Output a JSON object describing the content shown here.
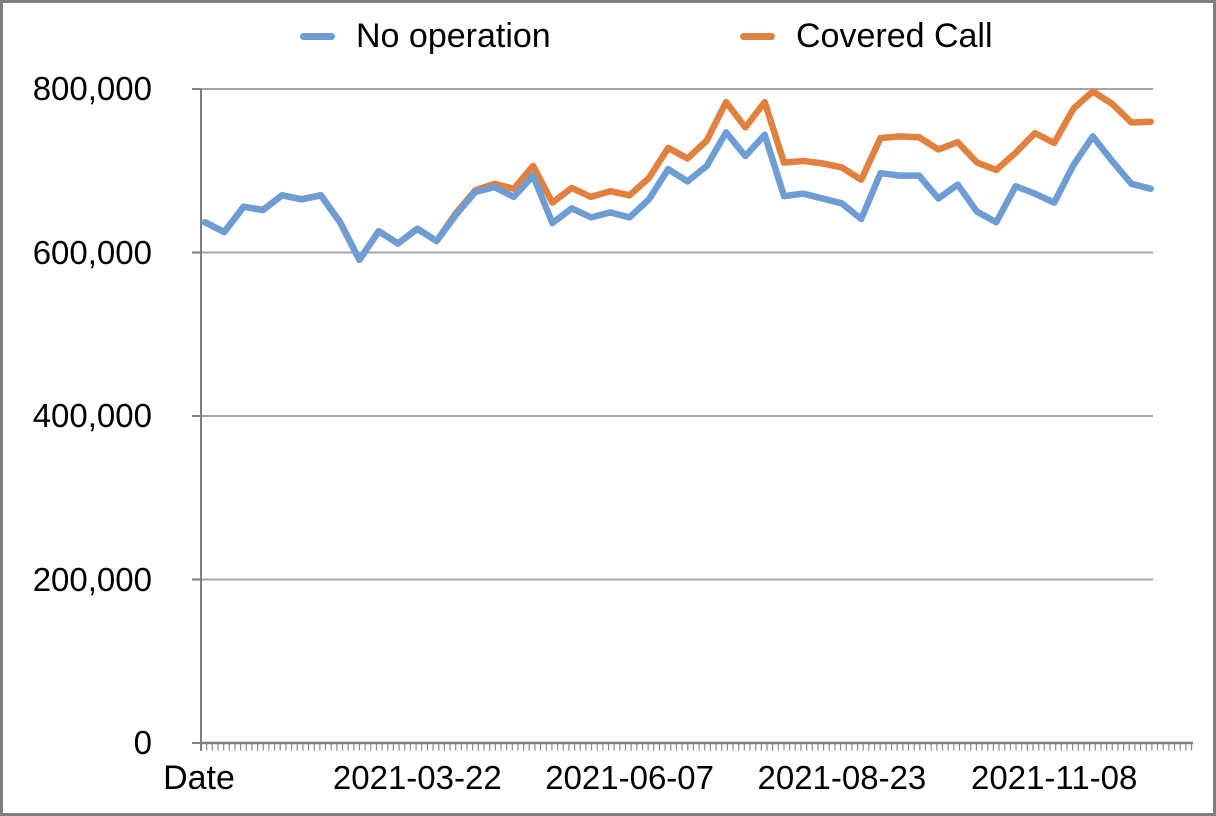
{
  "chart_data": {
    "type": "line",
    "title": "",
    "xlabel": "Date",
    "ylabel": "",
    "ylim": [
      0,
      800000
    ],
    "grid": "horizontal",
    "legend_position": "top-center",
    "ytick_values": [
      0,
      200000,
      400000,
      600000,
      800000
    ],
    "ytick_labels": [
      "0",
      "200,000",
      "400,000",
      "600,000",
      "800,000"
    ],
    "xticks": [
      {
        "label": "2021-03-22",
        "index": 11
      },
      {
        "label": "2021-06-07",
        "index": 22
      },
      {
        "label": "2021-08-23",
        "index": 33
      },
      {
        "label": "2021-11-08",
        "index": 44
      }
    ],
    "x": [
      "2021-01-04",
      "2021-01-11",
      "2021-01-18",
      "2021-01-25",
      "2021-02-01",
      "2021-02-08",
      "2021-02-15",
      "2021-02-22",
      "2021-03-01",
      "2021-03-08",
      "2021-03-15",
      "2021-03-22",
      "2021-03-29",
      "2021-04-05",
      "2021-04-12",
      "2021-04-19",
      "2021-04-26",
      "2021-05-03",
      "2021-05-10",
      "2021-05-17",
      "2021-05-24",
      "2021-05-31",
      "2021-06-07",
      "2021-06-14",
      "2021-06-21",
      "2021-06-28",
      "2021-07-05",
      "2021-07-12",
      "2021-07-19",
      "2021-07-26",
      "2021-08-02",
      "2021-08-09",
      "2021-08-16",
      "2021-08-23",
      "2021-08-30",
      "2021-09-06",
      "2021-09-13",
      "2021-09-20",
      "2021-09-27",
      "2021-10-04",
      "2021-10-11",
      "2021-10-18",
      "2021-10-25",
      "2021-11-01",
      "2021-11-08",
      "2021-11-15",
      "2021-11-22",
      "2021-11-29",
      "2021-12-06",
      "2021-12-13"
    ],
    "series": [
      {
        "name": "Covered Call",
        "color": "#E0813F",
        "values": [
          637000,
          625000,
          656000,
          652000,
          670000,
          665000,
          670000,
          637000,
          591000,
          626000,
          611000,
          629000,
          614000,
          648000,
          676000,
          684000,
          678000,
          706000,
          661000,
          679000,
          668000,
          675000,
          670000,
          691000,
          728000,
          715000,
          737000,
          784000,
          753000,
          784000,
          710000,
          712000,
          709000,
          704000,
          689000,
          740000,
          742000,
          741000,
          726000,
          735000,
          710000,
          701000,
          722000,
          746000,
          734000,
          776000,
          797000,
          782000,
          759000,
          760000
        ]
      },
      {
        "name": "No operation",
        "color": "#6D9DD3",
        "values": [
          637000,
          625000,
          656000,
          652000,
          670000,
          665000,
          670000,
          637000,
          591000,
          626000,
          611000,
          629000,
          614000,
          646000,
          674000,
          680000,
          668000,
          694000,
          636000,
          654000,
          643000,
          649000,
          643000,
          665000,
          702000,
          687000,
          706000,
          747000,
          718000,
          744000,
          669000,
          672000,
          666000,
          660000,
          641000,
          697000,
          694000,
          694000,
          666000,
          683000,
          650000,
          637000,
          681000,
          672000,
          661000,
          707000,
          742000,
          712000,
          684000,
          678000
        ]
      }
    ]
  },
  "legend": {
    "items": [
      {
        "label": "No operation",
        "color": "#6D9DD3"
      },
      {
        "label": "Covered Call",
        "color": "#E0813F"
      }
    ]
  },
  "colors": {
    "gridline": "#A6A6A6",
    "axis": "#7F7F7F",
    "minor_tick": "#8C8C8C",
    "border": "#808080",
    "text": "#000000",
    "background": "#FFFFFF"
  }
}
